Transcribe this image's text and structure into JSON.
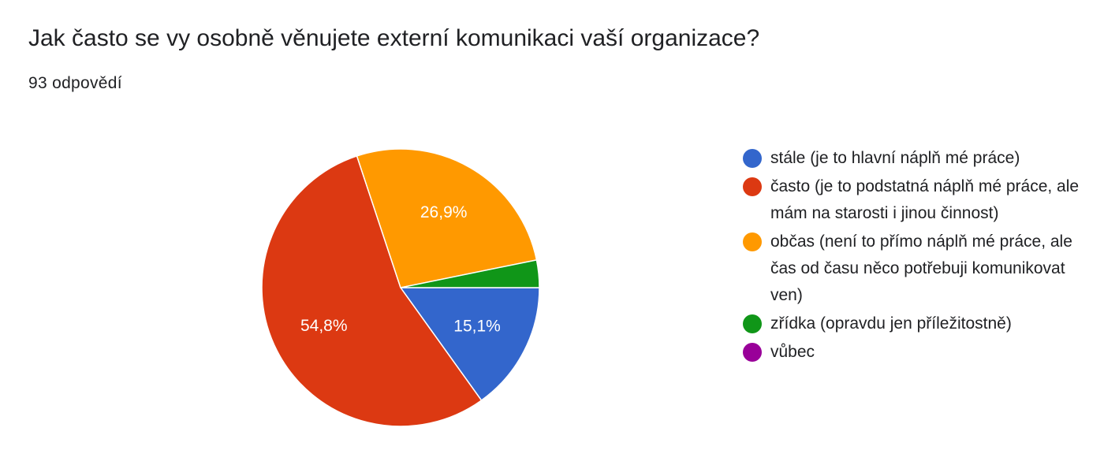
{
  "chart_data": {
    "type": "pie",
    "title": "Jak často se vy osobně věnujete externí komunikaci vaší organizace?",
    "subtitle": "93 odpovědí",
    "categories": [
      "stále (je to hlavní náplň mé práce)",
      "často (je to podstatná náplň mé práce, ale mám na starosti i jinou činnost)",
      "občas (není to přímo náplň mé práce, ale čas od času něco potřebuji komunikovat ven)",
      "zřídka (opravdu jen příležitostně)",
      "vůbec"
    ],
    "values": [
      15.1,
      54.8,
      26.9,
      3.2,
      0
    ],
    "value_labels": [
      "15,1%",
      "54,8%",
      "26,9%",
      null,
      null
    ],
    "colors": [
      "#3366cc",
      "#dc3912",
      "#ff9900",
      "#109618",
      "#990099"
    ],
    "legend": "right"
  }
}
